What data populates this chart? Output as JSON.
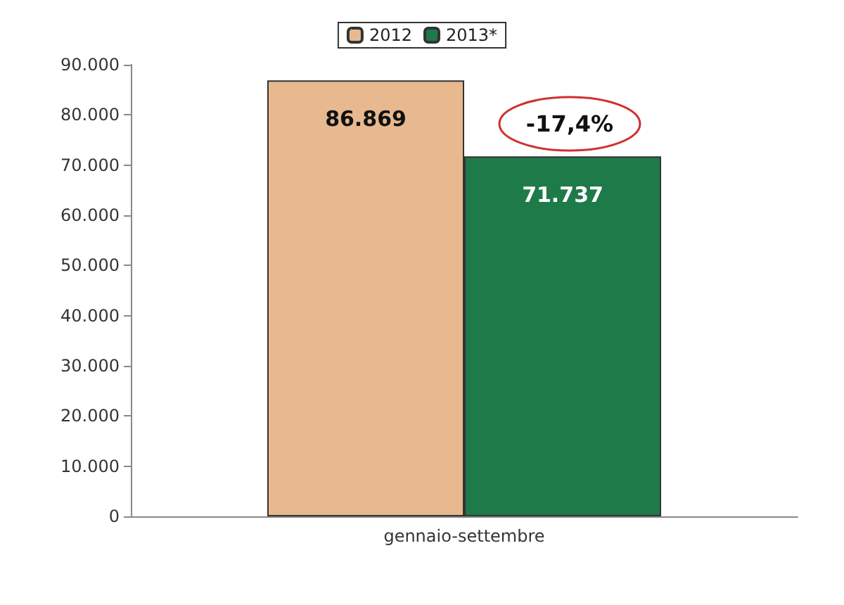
{
  "chart_data": {
    "type": "bar",
    "categories": [
      "gennaio-settembre"
    ],
    "series": [
      {
        "name": "2012",
        "color": "#e8b98e",
        "values": [
          86869
        ],
        "value_labels": [
          "86.869"
        ]
      },
      {
        "name": "2013*",
        "color": "#1f7a4a",
        "values": [
          71737
        ],
        "value_labels": [
          "71.737"
        ]
      }
    ],
    "ylim": [
      0,
      90000
    ],
    "yticks": [
      {
        "value": 0,
        "label": "0"
      },
      {
        "value": 10000,
        "label": "10.000"
      },
      {
        "value": 20000,
        "label": "20.000"
      },
      {
        "value": 30000,
        "label": "30.000"
      },
      {
        "value": 40000,
        "label": "40.000"
      },
      {
        "value": 50000,
        "label": "50.000"
      },
      {
        "value": 60000,
        "label": "60.000"
      },
      {
        "value": 70000,
        "label": "70.000"
      },
      {
        "value": 80000,
        "label": "80.000"
      },
      {
        "value": 90000,
        "label": "90.000"
      }
    ],
    "annotations": [
      "-17,4%"
    ],
    "legend": "top"
  }
}
